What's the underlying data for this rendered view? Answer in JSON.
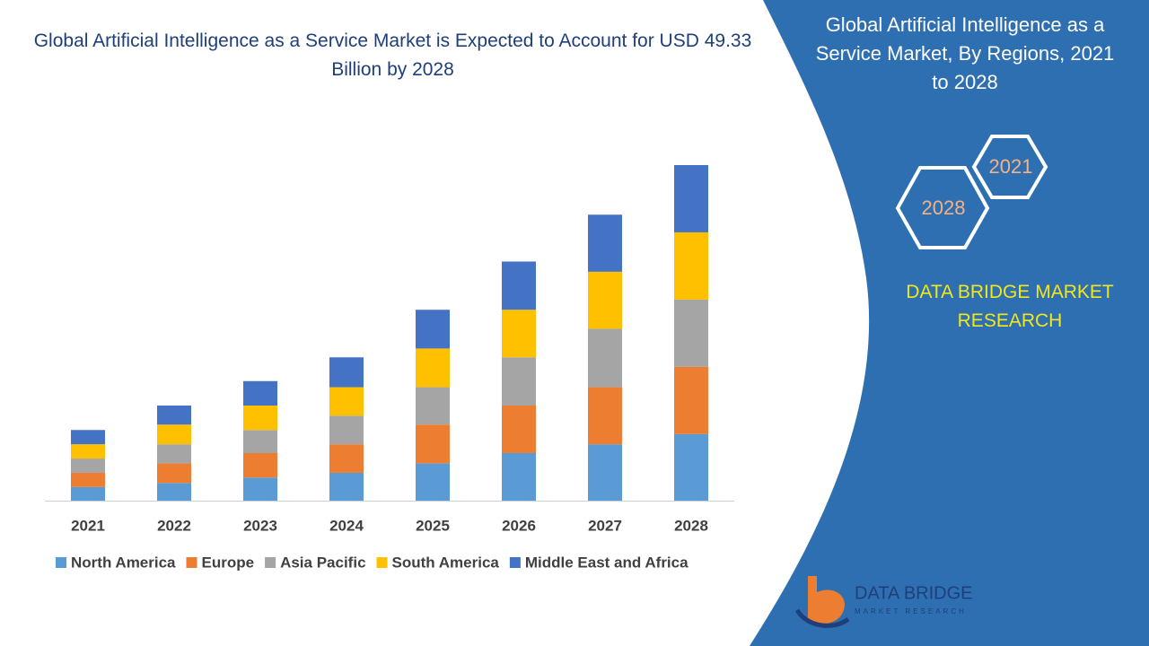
{
  "chart_data": {
    "type": "stacked_bar",
    "title": "Global Artificial Intelligence as a Service Market is Expected to Account for USD 49.33 Billion by 2028",
    "categories": [
      "2021",
      "2022",
      "2023",
      "2024",
      "2025",
      "2026",
      "2027",
      "2028"
    ],
    "series": [
      {
        "name": "North America",
        "color": "#5b9bd5",
        "values": [
          2.0,
          2.6,
          3.4,
          4.1,
          5.5,
          7.0,
          8.3,
          9.8
        ]
      },
      {
        "name": "Europe",
        "color": "#ed7d31",
        "values": [
          2.1,
          2.9,
          3.6,
          4.2,
          5.7,
          7.0,
          8.4,
          9.9
        ]
      },
      {
        "name": "Asia Pacific",
        "color": "#a5a5a5",
        "values": [
          2.1,
          2.8,
          3.4,
          4.2,
          5.5,
          7.1,
          8.6,
          9.9
        ]
      },
      {
        "name": "South America",
        "color": "#ffc000",
        "values": [
          2.1,
          2.9,
          3.6,
          4.2,
          5.7,
          7.0,
          8.4,
          9.9
        ]
      },
      {
        "name": "Middle East and Africa",
        "color": "#4472c4",
        "values": [
          2.1,
          2.8,
          3.6,
          4.4,
          5.7,
          7.1,
          8.4,
          9.9
        ]
      }
    ],
    "legend": "bottom"
  },
  "panel": {
    "title": "Global Artificial Intelligence as a Service Market, By Regions, 2021 to 2028",
    "hex_start": "2021",
    "hex_end": "2028",
    "brand": "DATA BRIDGE MARKET RESEARCH",
    "logo_name": "DATA BRIDGE",
    "logo_tag": "MARKET RESEARCH"
  }
}
